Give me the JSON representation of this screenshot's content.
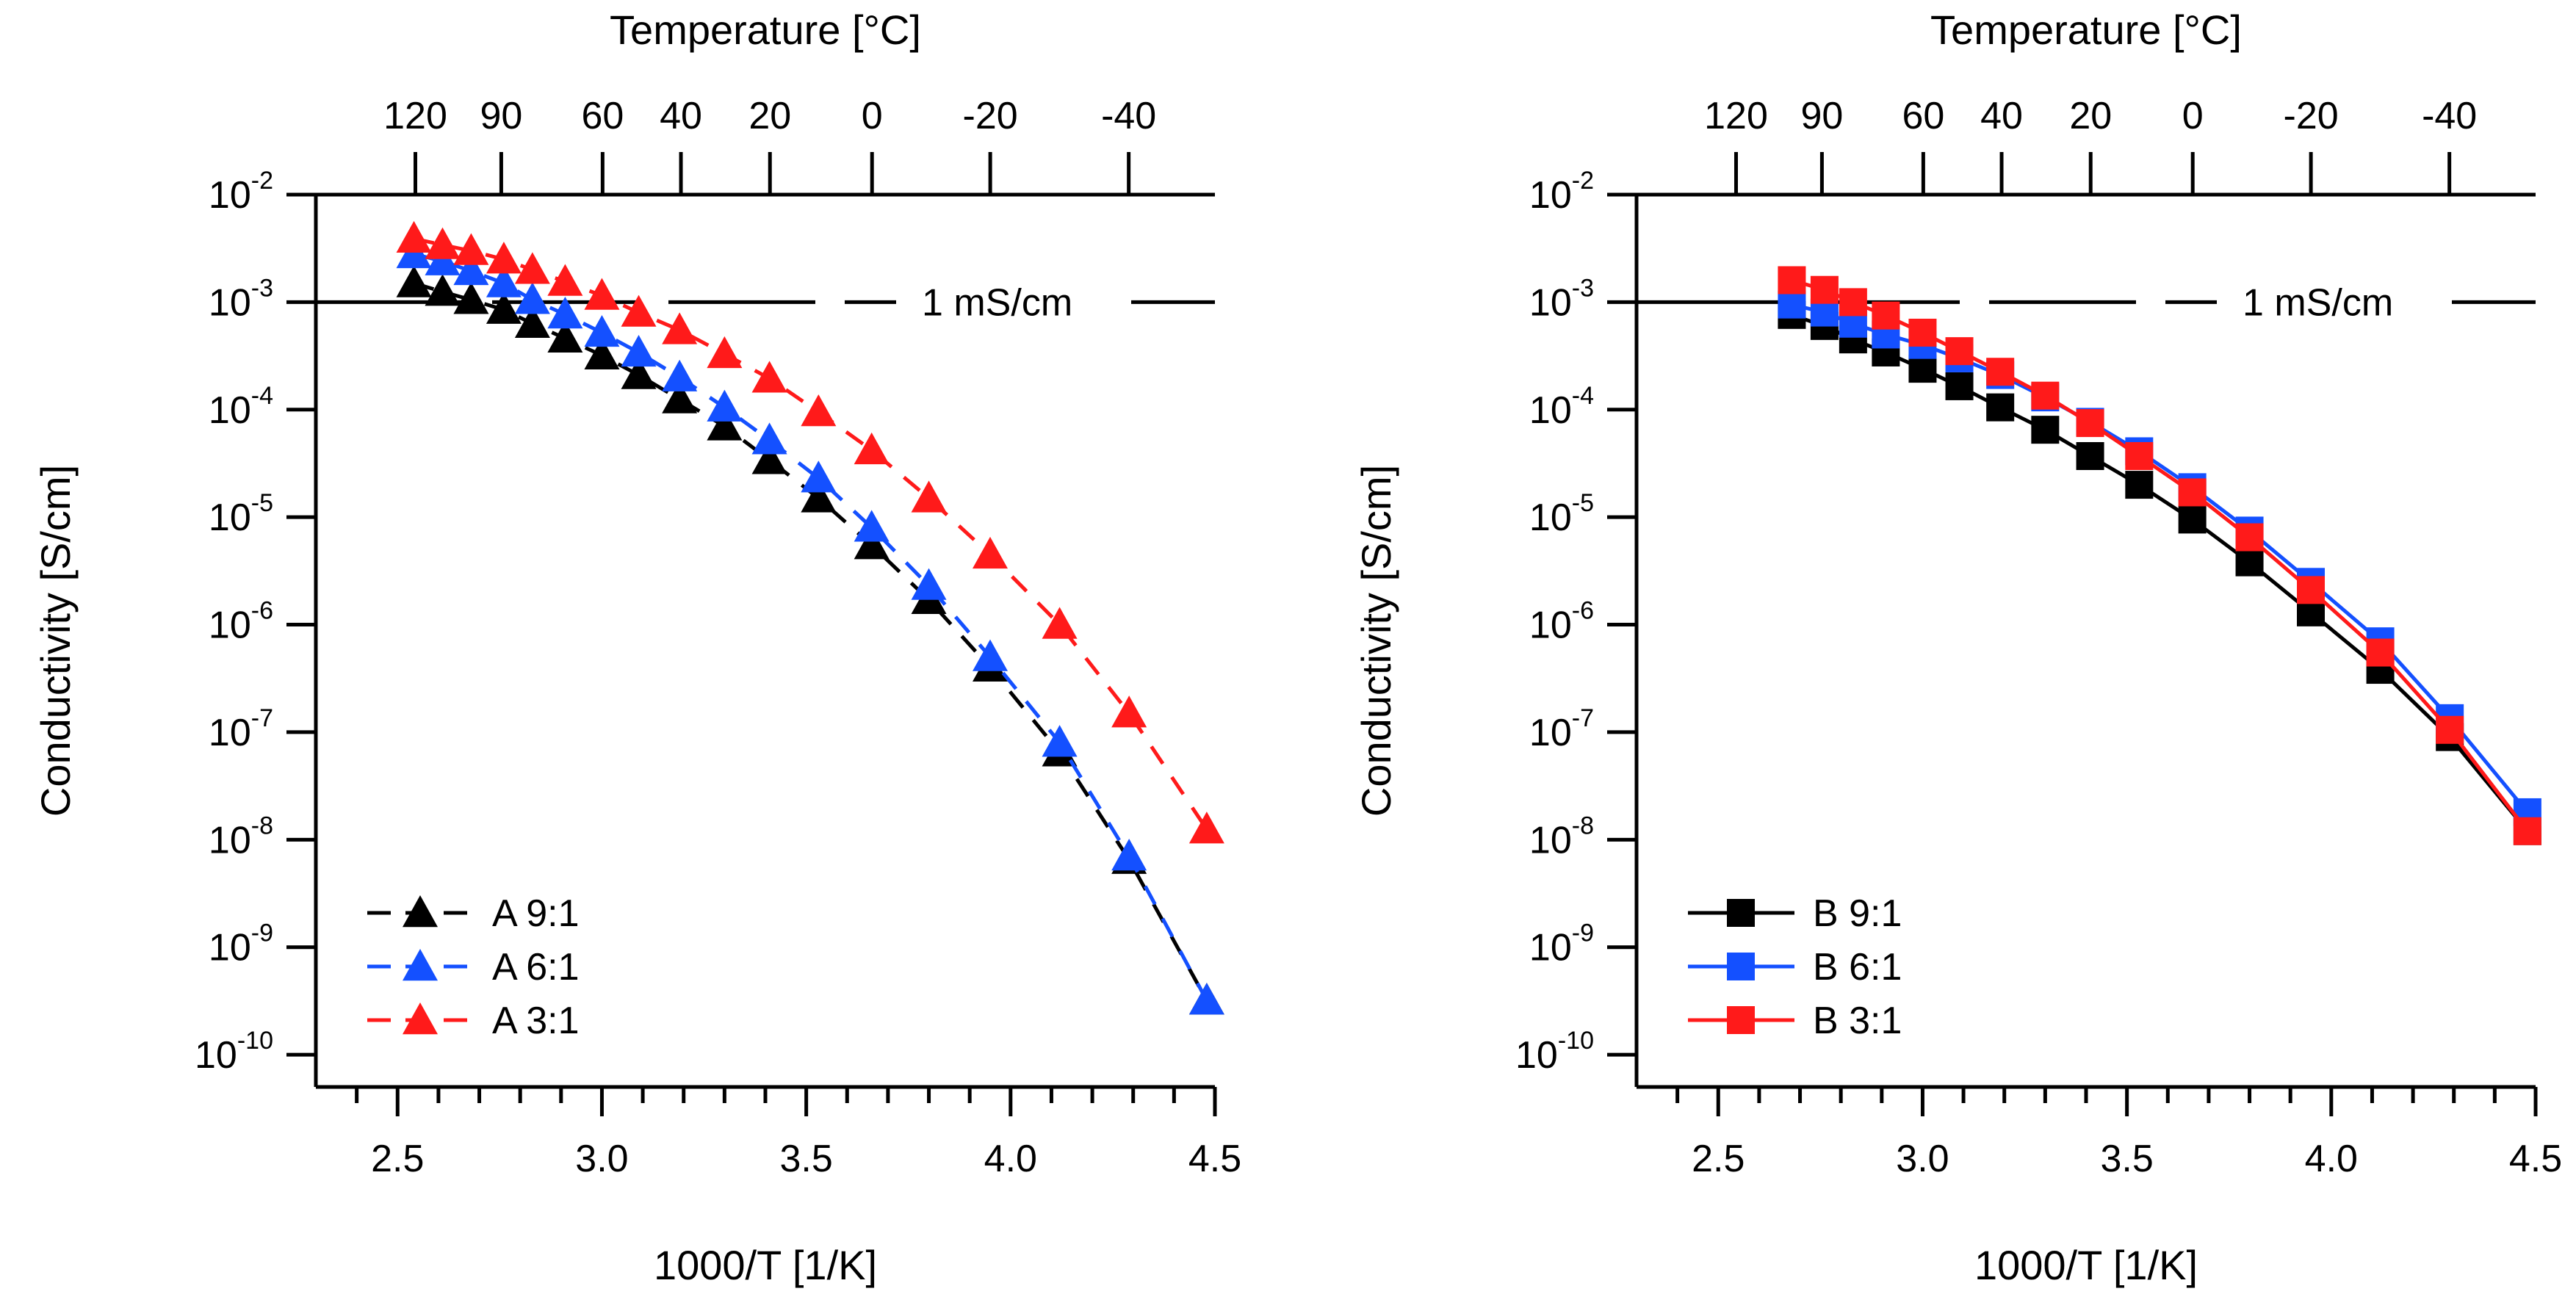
{
  "chart_data": [
    {
      "type": "line",
      "panel": "left",
      "line_style": "dashed",
      "marker": "triangle",
      "title": "",
      "xlabel": "1000/T [1/K]",
      "ylabel": "Conductivity [S/cm]",
      "top_axis_label": "Temperature [°C]",
      "xlim": [
        2.3,
        4.5
      ],
      "ylim_log10": [
        -10.3,
        -2
      ],
      "x_ticks": [
        2.5,
        3.0,
        3.5,
        4.0,
        4.5
      ],
      "x_tick_labels": [
        "2.5",
        "3.0",
        "3.5",
        "4.0",
        "4.5"
      ],
      "y_tick_exponents": [
        -2,
        -3,
        -4,
        -5,
        -6,
        -7,
        -8,
        -9,
        -10
      ],
      "top_ticks_celsius": [
        120,
        90,
        60,
        40,
        20,
        0,
        -20,
        -40
      ],
      "top_tick_labels": [
        "120",
        "90",
        "60",
        "40",
        "20",
        "0",
        "-20",
        "-40"
      ],
      "reference_line": {
        "value": 0.001,
        "label": "1 mS/cm"
      },
      "series": [
        {
          "name": "A 9:1",
          "color": "#000000",
          "x": [
            2.54,
            2.61,
            2.68,
            2.76,
            2.83,
            2.91,
            3.0,
            3.09,
            3.19,
            3.3,
            3.41,
            3.53,
            3.66,
            3.8,
            3.95,
            4.12,
            4.29,
            4.48
          ],
          "y": [
            0.0015,
            0.00125,
            0.00105,
            0.00085,
            0.00063,
            0.00046,
            0.00032,
            0.00021,
            0.000125,
            7e-05,
            3.4e-05,
            1.5e-05,
            5.5e-06,
            1.7e-06,
            4e-07,
            6.5e-08,
            6.5e-09,
            3.2e-10
          ]
        },
        {
          "name": "A 6:1",
          "color": "#1450ff",
          "x": [
            2.54,
            2.61,
            2.68,
            2.76,
            2.83,
            2.91,
            3.0,
            3.09,
            3.19,
            3.3,
            3.41,
            3.53,
            3.66,
            3.8,
            3.95,
            4.12,
            4.29,
            4.48
          ],
          "y": [
            0.0028,
            0.0024,
            0.00195,
            0.0015,
            0.00105,
            0.00077,
            0.00052,
            0.00034,
            0.0002,
            0.000105,
            5.2e-05,
            2.3e-05,
            8e-06,
            2.3e-06,
            5e-07,
            8e-08,
            7e-09,
            3.2e-10
          ]
        },
        {
          "name": "A 3:1",
          "color": "#ff1a1a",
          "x": [
            2.54,
            2.61,
            2.68,
            2.76,
            2.83,
            2.91,
            3.0,
            3.09,
            3.19,
            3.3,
            3.41,
            3.53,
            3.66,
            3.8,
            3.95,
            4.12,
            4.29,
            4.48
          ],
          "y": [
            0.0039,
            0.0034,
            0.003,
            0.0025,
            0.002,
            0.00155,
            0.00115,
            0.0008,
            0.00055,
            0.00033,
            0.000195,
            9.5e-05,
            4.2e-05,
            1.5e-05,
            4.5e-06,
            1e-06,
            1.5e-07,
            1.25e-08
          ]
        }
      ]
    },
    {
      "type": "line",
      "panel": "right",
      "line_style": "solid",
      "marker": "square",
      "title": "",
      "xlabel": "1000/T [1/K]",
      "ylabel": "Conductivity [S/cm]",
      "top_axis_label": "Temperature [°C]",
      "xlim": [
        2.3,
        4.5
      ],
      "ylim_log10": [
        -10.3,
        -2
      ],
      "x_ticks": [
        2.5,
        3.0,
        3.5,
        4.0,
        4.5
      ],
      "x_tick_labels": [
        "2.5",
        "3.0",
        "3.5",
        "4.0",
        "4.5"
      ],
      "y_tick_exponents": [
        -2,
        -3,
        -4,
        -5,
        -6,
        -7,
        -8,
        -9,
        -10
      ],
      "top_ticks_celsius": [
        120,
        90,
        60,
        40,
        20,
        0,
        -20,
        -40
      ],
      "top_tick_labels": [
        "120",
        "90",
        "60",
        "40",
        "20",
        "0",
        "-20",
        "-40"
      ],
      "reference_line": {
        "value": 0.001,
        "label": "1 mS/cm"
      },
      "series": [
        {
          "name": "B 9:1",
          "color": "#000000",
          "x": [
            2.68,
            2.76,
            2.83,
            2.91,
            3.0,
            3.09,
            3.19,
            3.3,
            3.41,
            3.53,
            3.66,
            3.8,
            3.95,
            4.12,
            4.29,
            4.48
          ],
          "y": [
            0.00076,
            0.0006,
            0.00045,
            0.00034,
            0.00024,
            0.000165,
            0.000105,
            6.5e-05,
            3.7e-05,
            2e-05,
            9.5e-06,
            3.8e-06,
            1.3e-06,
            3.8e-07,
            9e-08,
            1.2e-08
          ]
        },
        {
          "name": "B 6:1",
          "color": "#1450ff",
          "x": [
            2.68,
            2.76,
            2.83,
            2.91,
            3.0,
            3.09,
            3.19,
            3.3,
            3.41,
            3.53,
            3.66,
            3.8,
            3.95,
            4.12,
            4.29,
            4.48
          ],
          "y": [
            0.00095,
            0.0008,
            0.00063,
            0.0005,
            0.0004,
            0.0003,
            0.00021,
            0.00013,
            7.7e-05,
            4.1e-05,
            1.9e-05,
            7.5e-06,
            2.5e-06,
            7e-07,
            1.35e-07,
            1.8e-08
          ]
        },
        {
          "name": "B 3:1",
          "color": "#ff1a1a",
          "x": [
            2.68,
            2.76,
            2.83,
            2.91,
            3.0,
            3.09,
            3.19,
            3.3,
            3.41,
            3.53,
            3.66,
            3.8,
            3.95,
            4.12,
            4.29,
            4.48
          ],
          "y": [
            0.0016,
            0.0013,
            0.001,
            0.00075,
            0.00052,
            0.00035,
            0.000225,
            0.000135,
            7.5e-05,
            3.7e-05,
            1.7e-05,
            6.5e-06,
            2.1e-06,
            5.5e-07,
            1.05e-07,
            1.2e-08
          ]
        }
      ]
    }
  ]
}
